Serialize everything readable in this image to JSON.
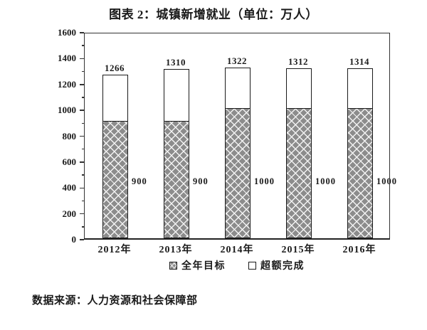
{
  "title": "图表 2：城镇新增就业（单位：万人）",
  "source": "数据来源：人力资源和社会保障部",
  "chart_data": {
    "type": "bar",
    "stacked": true,
    "title": "图表 2：城镇新增就业（单位：万人）",
    "categories": [
      "2012年",
      "2013年",
      "2014年",
      "2015年",
      "2016年"
    ],
    "series": [
      {
        "name": "全年目标",
        "values": [
          900,
          900,
          1000,
          1000,
          1000
        ]
      },
      {
        "name": "超额完成",
        "values": [
          366,
          410,
          322,
          312,
          314
        ]
      }
    ],
    "totals": [
      1266,
      1310,
      1322,
      1312,
      1314
    ],
    "total_labels": [
      "1266",
      "1310",
      "1322",
      "1312",
      "1314"
    ],
    "target_labels": [
      "900",
      "900",
      "1000",
      "1000",
      "1000"
    ],
    "target_label_anchor_value": 450,
    "ylim": [
      0,
      1600
    ],
    "ytick_step": 200,
    "ytick_minor_step": 100,
    "ytick_labels": [
      "0",
      "200",
      "400",
      "600",
      "800",
      "1000",
      "1200",
      "1400",
      "1600"
    ],
    "grid": false,
    "legend_position": "bottom",
    "legend": [
      {
        "label": "全年目标",
        "swatch": "hatch"
      },
      {
        "label": "超额完成",
        "swatch": "white"
      }
    ],
    "colors": {
      "hatch_fill": "#8c8c8c",
      "hatch_line": "#f2f2f2",
      "bar_border": "#1a1a1a",
      "axis": "#333333",
      "text": "#1a1a1a",
      "background": "#ffffff"
    }
  }
}
